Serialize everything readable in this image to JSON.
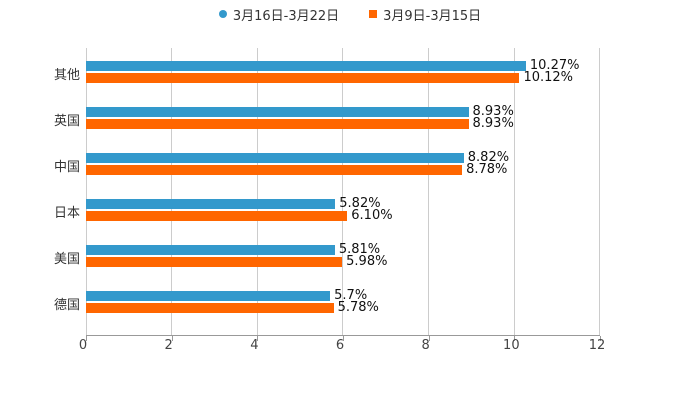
{
  "legend": [
    {
      "label": "3月16日-3月22日",
      "color": "#3399cc",
      "shape": "circle"
    },
    {
      "label": "3月9日-3月15日",
      "color": "#ff6600",
      "shape": "square"
    }
  ],
  "axis": {
    "ticks": [
      "0",
      "2",
      "4",
      "6",
      "8",
      "10",
      "12"
    ]
  },
  "rows": [
    {
      "category": "其他",
      "a": "10.27%",
      "b": "10.12%"
    },
    {
      "category": "英国",
      "a": "8.93%",
      "b": "8.93%"
    },
    {
      "category": "中国",
      "a": "8.82%",
      "b": "8.78%"
    },
    {
      "category": "日本",
      "a": "5.82%",
      "b": "6.10%"
    },
    {
      "category": "美国",
      "a": "5.81%",
      "b": "5.98%"
    },
    {
      "category": "德国",
      "a": "5.7%",
      "b": "5.78%"
    }
  ],
  "chart_data": {
    "type": "bar",
    "orientation": "horizontal",
    "title": "",
    "xlabel": "",
    "ylabel": "",
    "xlim": [
      0,
      12
    ],
    "grid": true,
    "legend_position": "top",
    "categories": [
      "其他",
      "英国",
      "中国",
      "日本",
      "美国",
      "德国"
    ],
    "series": [
      {
        "name": "3月16日-3月22日",
        "color": "#3399cc",
        "values": [
          10.27,
          8.93,
          8.82,
          5.82,
          5.81,
          5.7
        ]
      },
      {
        "name": "3月9日-3月15日",
        "color": "#ff6600",
        "values": [
          10.12,
          8.93,
          8.78,
          6.1,
          5.98,
          5.78
        ]
      }
    ]
  }
}
